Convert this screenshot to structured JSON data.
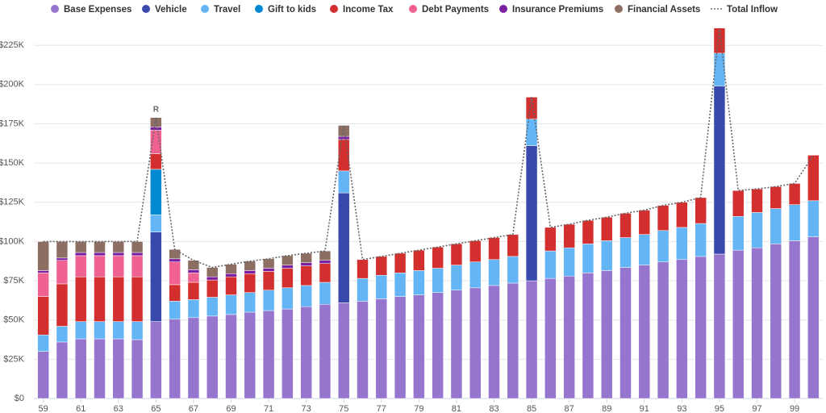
{
  "chart_data": {
    "type": "bar",
    "stacked": true,
    "categories": [
      "59",
      null,
      "61",
      null,
      "63",
      null,
      "65",
      null,
      "67",
      null,
      "69",
      null,
      "71",
      null,
      "73",
      null,
      "75",
      null,
      "77",
      null,
      "79",
      null,
      "81",
      null,
      "83",
      null,
      "85",
      null,
      "87",
      null,
      "89",
      null,
      "91",
      null,
      "93",
      null,
      "95",
      null,
      "97",
      null,
      "99",
      null
    ],
    "series": [
      {
        "name": "Base Expenses",
        "color": "#9575cd",
        "values": [
          30000,
          36000,
          38000,
          38000,
          38000,
          37500,
          49000,
          50500,
          51500,
          52500,
          53500,
          55000,
          56000,
          57000,
          58500,
          60000,
          61000,
          62000,
          63500,
          65000,
          66000,
          67500,
          69000,
          70500,
          72000,
          73500,
          75000,
          76500,
          78000,
          80000,
          81500,
          83500,
          85000,
          87000,
          88500,
          90500,
          92000,
          94500,
          96000,
          98500,
          100500,
          103000
        ]
      },
      {
        "name": "Vehicle",
        "color": "#3949ab",
        "values": [
          0,
          0,
          0,
          0,
          0,
          0,
          57000,
          0,
          0,
          0,
          0,
          0,
          0,
          0,
          0,
          0,
          70000,
          0,
          0,
          0,
          0,
          0,
          0,
          0,
          0,
          0,
          86000,
          0,
          0,
          0,
          0,
          0,
          0,
          0,
          0,
          0,
          107000,
          0,
          0,
          0,
          0,
          0
        ]
      },
      {
        "name": "Travel",
        "color": "#64b5f6",
        "values": [
          10500,
          10000,
          11000,
          11000,
          11000,
          11500,
          11000,
          11500,
          11500,
          12000,
          12500,
          12500,
          13000,
          13500,
          13500,
          14000,
          14000,
          14500,
          15000,
          15000,
          15500,
          15500,
          16000,
          16500,
          16500,
          17000,
          17000,
          17500,
          18000,
          18500,
          19000,
          19000,
          19500,
          20000,
          20500,
          21000,
          21000,
          21500,
          22500,
          22500,
          23000,
          23000
        ]
      },
      {
        "name": "Gift to kids",
        "color": "#0288d1",
        "values": [
          0,
          0,
          0,
          0,
          0,
          0,
          29000,
          0,
          0,
          0,
          0,
          0,
          0,
          0,
          0,
          0,
          0,
          0,
          0,
          0,
          0,
          0,
          0,
          0,
          0,
          0,
          0,
          0,
          0,
          0,
          0,
          0,
          0,
          0,
          0,
          0,
          0,
          0,
          0,
          0,
          0,
          0
        ]
      },
      {
        "name": "Income Tax",
        "color": "#d32f2f",
        "values": [
          24500,
          27000,
          28500,
          28500,
          28500,
          28500,
          10000,
          10500,
          11000,
          11000,
          11500,
          12000,
          12000,
          12500,
          12500,
          12000,
          20000,
          12000,
          12000,
          12500,
          13000,
          13500,
          13500,
          13500,
          14000,
          14000,
          14000,
          15000,
          15000,
          15000,
          15000,
          15500,
          15500,
          16000,
          16000,
          16500,
          16000,
          16500,
          15000,
          14000,
          13500,
          29000
        ]
      },
      {
        "name": "Debt Payments",
        "color": "#f06292",
        "values": [
          15000,
          15000,
          13500,
          13500,
          13500,
          13500,
          15000,
          14500,
          6000,
          0,
          0,
          0,
          0,
          0,
          0,
          0,
          0,
          0,
          0,
          0,
          0,
          0,
          0,
          0,
          0,
          0,
          0,
          0,
          0,
          0,
          0,
          0,
          0,
          0,
          0,
          0,
          0,
          0,
          0,
          0,
          0,
          0
        ]
      },
      {
        "name": "Insurance Premiums",
        "color": "#7b1fa2",
        "values": [
          1500,
          1500,
          2000,
          2000,
          2000,
          2000,
          2000,
          2000,
          2000,
          2000,
          2000,
          2000,
          2000,
          2000,
          2000,
          2000,
          2000,
          0,
          0,
          0,
          0,
          0,
          0,
          0,
          0,
          0,
          0,
          0,
          0,
          0,
          0,
          0,
          0,
          0,
          0,
          0,
          0,
          0,
          0,
          0,
          0,
          0
        ]
      },
      {
        "name": "Financial Assets",
        "color": "#8d6e63",
        "values": [
          18500,
          10500,
          7000,
          7000,
          7000,
          7000,
          6000,
          6000,
          6000,
          6000,
          6000,
          6000,
          6000,
          6000,
          6000,
          6000,
          7000,
          0,
          0,
          0,
          0,
          0,
          0,
          0,
          0,
          0,
          0,
          0,
          0,
          0,
          0,
          0,
          0,
          0,
          0,
          0,
          0,
          0,
          0,
          0,
          0,
          0
        ]
      }
    ],
    "line": {
      "name": "Total Inflow",
      "color": "#666666",
      "values": [
        100000,
        100000,
        100000,
        100000,
        100000,
        100000,
        179000,
        95000,
        88000,
        83500,
        85500,
        87500,
        89000,
        91000,
        92500,
        94000,
        174000,
        88500,
        90500,
        92500,
        94500,
        96500,
        98500,
        100500,
        102500,
        104500,
        192000,
        109000,
        111000,
        113500,
        115500,
        118000,
        120000,
        123000,
        125000,
        128000,
        236000,
        132500,
        133500,
        135000,
        137000,
        155000
      ]
    },
    "annotation": "R",
    "ylim": [
      0,
      240000
    ],
    "yticks": [
      {
        "value": 0,
        "label": "$0"
      },
      {
        "value": 25000,
        "label": "$25K"
      },
      {
        "value": 50000,
        "label": "$50K"
      },
      {
        "value": 75000,
        "label": "$75K"
      },
      {
        "value": 100000,
        "label": "$100K"
      },
      {
        "value": 125000,
        "label": "$125K"
      },
      {
        "value": 150000,
        "label": "$150K"
      },
      {
        "value": 175000,
        "label": "$175K"
      },
      {
        "value": 200000,
        "label": "$200K"
      },
      {
        "value": 225000,
        "label": "$225K"
      }
    ],
    "grid": true
  }
}
